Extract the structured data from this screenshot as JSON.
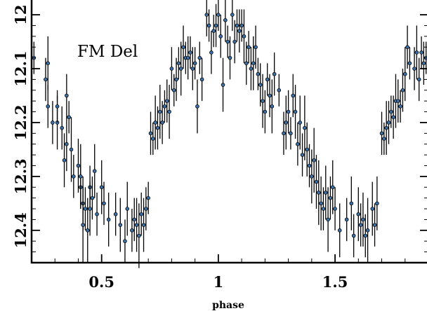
{
  "chart_data": {
    "type": "scatter",
    "title": "",
    "annotation": "FM Del",
    "xlabel": "phase",
    "ylabel": "",
    "xlim": [
      0.2,
      1.9
    ],
    "ylim": [
      12.46,
      11.97
    ],
    "y_inverted": true,
    "x_ticks": [
      0.5,
      1,
      1.5
    ],
    "x_tick_labels": [
      "0.5",
      "1",
      "1.5"
    ],
    "y_ticks": [
      12,
      12.1,
      12.2,
      12.3,
      12.4
    ],
    "y_tick_labels": [
      "12",
      "12.1",
      "12.2",
      "12.3",
      "12.4"
    ],
    "grid": false,
    "legend": "none",
    "marker_color": "#3a6ea5",
    "series": [
      {
        "values": [
          [
            0.21,
            12.08,
            0.03
          ],
          [
            0.26,
            12.12,
            0.04
          ],
          [
            0.27,
            12.09,
            0.05
          ],
          [
            0.27,
            12.17,
            0.04
          ],
          [
            0.29,
            12.2,
            0.04
          ],
          [
            0.31,
            12.2,
            0.05
          ],
          [
            0.31,
            12.17,
            0.03
          ],
          [
            0.33,
            12.21,
            0.04
          ],
          [
            0.34,
            12.27,
            0.05
          ],
          [
            0.35,
            12.15,
            0.04
          ],
          [
            0.35,
            12.24,
            0.05
          ],
          [
            0.36,
            12.19,
            0.03
          ],
          [
            0.37,
            12.25,
            0.06
          ],
          [
            0.38,
            12.3,
            0.04
          ],
          [
            0.4,
            12.28,
            0.05
          ],
          [
            0.41,
            12.32,
            0.04
          ],
          [
            0.41,
            12.3,
            0.06
          ],
          [
            0.42,
            12.35,
            0.05
          ],
          [
            0.42,
            12.39,
            0.07
          ],
          [
            0.43,
            12.36,
            0.04
          ],
          [
            0.44,
            12.4,
            0.06
          ],
          [
            0.45,
            12.32,
            0.04
          ],
          [
            0.45,
            12.36,
            0.05
          ],
          [
            0.46,
            12.34,
            0.04
          ],
          [
            0.47,
            12.29,
            0.05
          ],
          [
            0.48,
            12.37,
            0.04
          ],
          [
            0.5,
            12.32,
            0.05
          ],
          [
            0.51,
            12.35,
            0.04
          ],
          [
            0.53,
            12.38,
            0.05
          ],
          [
            0.56,
            12.37,
            0.04
          ],
          [
            0.58,
            12.39,
            0.05
          ],
          [
            0.6,
            12.42,
            0.04
          ],
          [
            0.61,
            12.36,
            0.05
          ],
          [
            0.63,
            12.4,
            0.04
          ],
          [
            0.64,
            12.38,
            0.04
          ],
          [
            0.65,
            12.39,
            0.05
          ],
          [
            0.66,
            12.41,
            0.06
          ],
          [
            0.67,
            12.37,
            0.04
          ],
          [
            0.68,
            12.39,
            0.05
          ],
          [
            0.69,
            12.36,
            0.04
          ],
          [
            0.7,
            12.34,
            0.03
          ],
          [
            0.71,
            12.22,
            0.04
          ],
          [
            0.72,
            12.23,
            0.03
          ],
          [
            0.73,
            12.2,
            0.05
          ],
          [
            0.74,
            12.21,
            0.04
          ],
          [
            0.75,
            12.18,
            0.05
          ],
          [
            0.76,
            12.2,
            0.04
          ],
          [
            0.77,
            12.17,
            0.03
          ],
          [
            0.78,
            12.16,
            0.04
          ],
          [
            0.79,
            12.18,
            0.05
          ],
          [
            0.8,
            12.1,
            0.04
          ],
          [
            0.81,
            12.14,
            0.03
          ],
          [
            0.82,
            12.12,
            0.04
          ],
          [
            0.83,
            12.09,
            0.03
          ],
          [
            0.84,
            12.1,
            0.05
          ],
          [
            0.85,
            12.06,
            0.04
          ],
          [
            0.86,
            12.08,
            0.03
          ],
          [
            0.87,
            12.08,
            0.04
          ],
          [
            0.88,
            12.07,
            0.03
          ],
          [
            0.89,
            12.1,
            0.04
          ],
          [
            0.9,
            12.09,
            0.03
          ],
          [
            0.91,
            12.17,
            0.05
          ],
          [
            0.92,
            12.08,
            0.03
          ],
          [
            0.93,
            12.12,
            0.04
          ],
          [
            0.95,
            12.0,
            0.04
          ],
          [
            0.96,
            12.02,
            0.03
          ],
          [
            0.97,
            12.07,
            0.04
          ],
          [
            0.98,
            12.03,
            0.03
          ],
          [
            0.99,
            12.02,
            0.04
          ],
          [
            1.0,
            12.0,
            0.03
          ],
          [
            1.01,
            12.04,
            0.04
          ],
          [
            1.02,
            12.13,
            0.05
          ],
          [
            1.03,
            12.01,
            0.04
          ],
          [
            1.04,
            12.05,
            0.03
          ],
          [
            1.05,
            12.08,
            0.04
          ],
          [
            1.06,
            12.0,
            0.03
          ],
          [
            1.07,
            12.05,
            0.04
          ],
          [
            1.08,
            12.02,
            0.03
          ],
          [
            1.09,
            12.03,
            0.04
          ],
          [
            1.1,
            12.02,
            0.03
          ],
          [
            1.11,
            12.04,
            0.05
          ],
          [
            1.12,
            12.09,
            0.04
          ],
          [
            1.13,
            12.06,
            0.03
          ],
          [
            1.14,
            12.1,
            0.04
          ],
          [
            1.15,
            12.09,
            0.05
          ],
          [
            1.16,
            12.06,
            0.04
          ],
          [
            1.17,
            12.11,
            0.03
          ],
          [
            1.18,
            12.13,
            0.04
          ],
          [
            1.19,
            12.16,
            0.05
          ],
          [
            1.2,
            12.18,
            0.04
          ],
          [
            1.21,
            12.12,
            0.03
          ],
          [
            1.22,
            12.15,
            0.04
          ],
          [
            1.23,
            12.17,
            0.05
          ],
          [
            1.24,
            12.11,
            0.04
          ],
          [
            1.26,
            12.14,
            0.03
          ],
          [
            1.28,
            12.22,
            0.04
          ],
          [
            1.29,
            12.2,
            0.05
          ],
          [
            1.3,
            12.18,
            0.04
          ],
          [
            1.31,
            12.22,
            0.03
          ],
          [
            1.32,
            12.15,
            0.04
          ],
          [
            1.33,
            12.18,
            0.05
          ],
          [
            1.34,
            12.24,
            0.04
          ],
          [
            1.35,
            12.2,
            0.05
          ],
          [
            1.36,
            12.26,
            0.04
          ],
          [
            1.37,
            12.21,
            0.06
          ],
          [
            1.38,
            12.25,
            0.05
          ],
          [
            1.39,
            12.28,
            0.04
          ],
          [
            1.4,
            12.3,
            0.05
          ],
          [
            1.41,
            12.27,
            0.06
          ],
          [
            1.42,
            12.31,
            0.05
          ],
          [
            1.43,
            12.33,
            0.06
          ],
          [
            1.44,
            12.35,
            0.05
          ],
          [
            1.45,
            12.36,
            0.04
          ],
          [
            1.46,
            12.33,
            0.05
          ],
          [
            1.47,
            12.38,
            0.06
          ],
          [
            1.48,
            12.34,
            0.04
          ],
          [
            1.49,
            12.32,
            0.05
          ],
          [
            1.5,
            12.36,
            0.04
          ],
          [
            1.52,
            12.4,
            0.05
          ],
          [
            1.55,
            12.38,
            0.04
          ],
          [
            1.57,
            12.35,
            0.05
          ],
          [
            1.58,
            12.41,
            0.04
          ],
          [
            1.6,
            12.37,
            0.05
          ],
          [
            1.61,
            12.39,
            0.04
          ],
          [
            1.62,
            12.38,
            0.05
          ],
          [
            1.63,
            12.41,
            0.04
          ],
          [
            1.64,
            12.4,
            0.06
          ],
          [
            1.66,
            12.36,
            0.05
          ],
          [
            1.67,
            12.39,
            0.04
          ],
          [
            1.68,
            12.35,
            0.05
          ],
          [
            1.7,
            12.22,
            0.04
          ],
          [
            1.71,
            12.23,
            0.03
          ],
          [
            1.72,
            12.21,
            0.05
          ],
          [
            1.73,
            12.2,
            0.04
          ],
          [
            1.74,
            12.18,
            0.03
          ],
          [
            1.75,
            12.19,
            0.04
          ],
          [
            1.76,
            12.16,
            0.05
          ],
          [
            1.77,
            12.16,
            0.04
          ],
          [
            1.78,
            12.17,
            0.03
          ],
          [
            1.79,
            12.14,
            0.04
          ],
          [
            1.8,
            12.11,
            0.05
          ],
          [
            1.81,
            12.06,
            0.04
          ],
          [
            1.82,
            12.09,
            0.03
          ],
          [
            1.84,
            12.1,
            0.04
          ],
          [
            1.85,
            12.07,
            0.05
          ],
          [
            1.86,
            12.12,
            0.04
          ],
          [
            1.87,
            12.07,
            0.03
          ],
          [
            1.88,
            12.09,
            0.04
          ],
          [
            1.89,
            12.08,
            0.03
          ]
        ]
      }
    ]
  }
}
